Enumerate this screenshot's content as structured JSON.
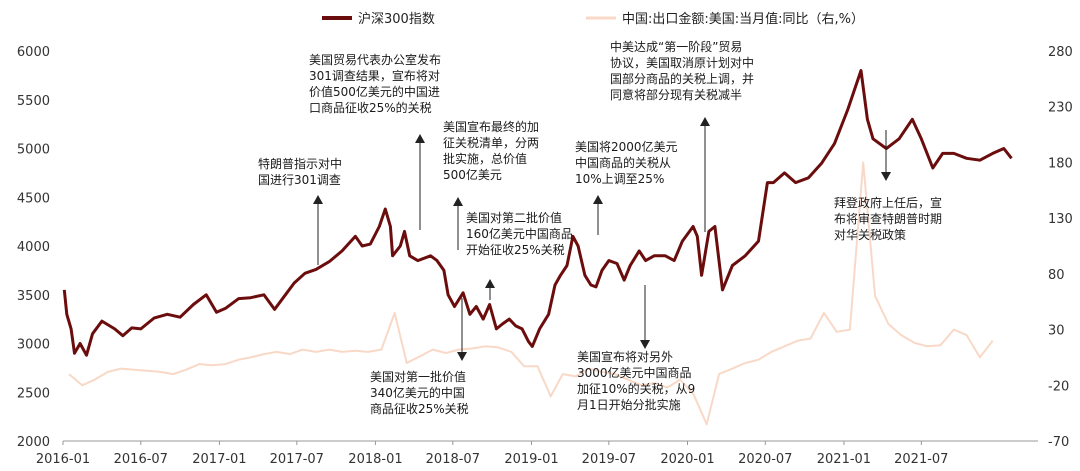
{
  "chart_data": {
    "type": "line",
    "dual_axis": true,
    "x_tick_labels": [
      "2016-01",
      "2016-07",
      "2017-01",
      "2017-07",
      "2018-01",
      "2018-07",
      "2019-01",
      "2019-07",
      "2020-01",
      "2020-07",
      "2021-01",
      "2021-07"
    ],
    "xlim": [
      "2016-01-01",
      "2022-03-31"
    ],
    "ylim_left": [
      2000,
      6000
    ],
    "y_left_ticks": [
      2000,
      2500,
      3000,
      3500,
      4000,
      4500,
      5000,
      5500,
      6000
    ],
    "ylim_right": [
      -70,
      280
    ],
    "y_right_ticks": [
      -70,
      -20,
      30,
      80,
      130,
      180,
      230,
      280
    ],
    "legend_position": "top",
    "series": [
      {
        "name": "沪深300指数",
        "axis": "left",
        "color": "#6b0d0d",
        "line_width": 3,
        "points": [
          [
            "2016-01-04",
            3550
          ],
          [
            "2016-01-10",
            3300
          ],
          [
            "2016-01-20",
            3150
          ],
          [
            "2016-01-28",
            2900
          ],
          [
            "2016-02-10",
            3000
          ],
          [
            "2016-02-25",
            2880
          ],
          [
            "2016-03-10",
            3100
          ],
          [
            "2016-04-01",
            3230
          ],
          [
            "2016-05-01",
            3150
          ],
          [
            "2016-05-20",
            3080
          ],
          [
            "2016-06-10",
            3160
          ],
          [
            "2016-07-01",
            3150
          ],
          [
            "2016-08-01",
            3260
          ],
          [
            "2016-09-01",
            3300
          ],
          [
            "2016-10-01",
            3270
          ],
          [
            "2016-11-01",
            3400
          ],
          [
            "2016-12-01",
            3500
          ],
          [
            "2016-12-25",
            3320
          ],
          [
            "2017-01-15",
            3360
          ],
          [
            "2017-02-15",
            3460
          ],
          [
            "2017-03-15",
            3470
          ],
          [
            "2017-04-15",
            3500
          ],
          [
            "2017-05-10",
            3350
          ],
          [
            "2017-06-01",
            3480
          ],
          [
            "2017-06-25",
            3620
          ],
          [
            "2017-07-20",
            3720
          ],
          [
            "2017-08-15",
            3760
          ],
          [
            "2017-09-15",
            3840
          ],
          [
            "2017-10-15",
            3950
          ],
          [
            "2017-11-15",
            4100
          ],
          [
            "2017-12-01",
            4000
          ],
          [
            "2017-12-20",
            4020
          ],
          [
            "2018-01-10",
            4200
          ],
          [
            "2018-01-24",
            4380
          ],
          [
            "2018-02-05",
            4200
          ],
          [
            "2018-02-10",
            3900
          ],
          [
            "2018-02-28",
            4000
          ],
          [
            "2018-03-10",
            4150
          ],
          [
            "2018-03-22",
            3900
          ],
          [
            "2018-04-10",
            3850
          ],
          [
            "2018-05-10",
            3900
          ],
          [
            "2018-05-25",
            3850
          ],
          [
            "2018-06-10",
            3750
          ],
          [
            "2018-06-20",
            3500
          ],
          [
            "2018-07-05",
            3380
          ],
          [
            "2018-07-25",
            3520
          ],
          [
            "2018-08-10",
            3300
          ],
          [
            "2018-08-25",
            3380
          ],
          [
            "2018-09-10",
            3250
          ],
          [
            "2018-09-25",
            3400
          ],
          [
            "2018-10-11",
            3150
          ],
          [
            "2018-10-25",
            3200
          ],
          [
            "2018-11-10",
            3250
          ],
          [
            "2018-11-25",
            3180
          ],
          [
            "2018-12-10",
            3150
          ],
          [
            "2018-12-25",
            3020
          ],
          [
            "2019-01-03",
            2970
          ],
          [
            "2019-01-20",
            3150
          ],
          [
            "2019-02-10",
            3300
          ],
          [
            "2019-02-25",
            3600
          ],
          [
            "2019-03-10",
            3700
          ],
          [
            "2019-03-25",
            3800
          ],
          [
            "2019-04-08",
            4100
          ],
          [
            "2019-04-20",
            4000
          ],
          [
            "2019-05-06",
            3700
          ],
          [
            "2019-05-20",
            3600
          ],
          [
            "2019-06-01",
            3580
          ],
          [
            "2019-06-15",
            3750
          ],
          [
            "2019-07-01",
            3850
          ],
          [
            "2019-07-20",
            3820
          ],
          [
            "2019-08-06",
            3650
          ],
          [
            "2019-08-20",
            3800
          ],
          [
            "2019-09-10",
            3950
          ],
          [
            "2019-09-25",
            3850
          ],
          [
            "2019-10-15",
            3900
          ],
          [
            "2019-11-10",
            3900
          ],
          [
            "2019-12-01",
            3850
          ],
          [
            "2019-12-20",
            4050
          ],
          [
            "2020-01-14",
            4200
          ],
          [
            "2020-01-24",
            4100
          ],
          [
            "2020-02-03",
            3700
          ],
          [
            "2020-02-20",
            4150
          ],
          [
            "2020-03-05",
            4200
          ],
          [
            "2020-03-23",
            3550
          ],
          [
            "2020-04-15",
            3800
          ],
          [
            "2020-05-15",
            3900
          ],
          [
            "2020-06-15",
            4050
          ],
          [
            "2020-07-06",
            4650
          ],
          [
            "2020-07-20",
            4650
          ],
          [
            "2020-08-15",
            4750
          ],
          [
            "2020-09-10",
            4650
          ],
          [
            "2020-10-10",
            4700
          ],
          [
            "2020-11-10",
            4850
          ],
          [
            "2020-12-10",
            5050
          ],
          [
            "2021-01-10",
            5400
          ],
          [
            "2021-02-10",
            5800
          ],
          [
            "2021-02-25",
            5300
          ],
          [
            "2021-03-10",
            5100
          ],
          [
            "2021-04-10",
            5000
          ],
          [
            "2021-05-10",
            5100
          ],
          [
            "2021-06-10",
            5300
          ],
          [
            "2021-07-01",
            5100
          ],
          [
            "2021-07-28",
            4800
          ],
          [
            "2021-08-20",
            4950
          ],
          [
            "2021-09-15",
            4950
          ],
          [
            "2021-10-15",
            4900
          ],
          [
            "2021-11-15",
            4880
          ],
          [
            "2021-12-15",
            4950
          ],
          [
            "2022-01-10",
            5000
          ],
          [
            "2022-01-28",
            4900
          ]
        ]
      },
      {
        "name": "中国:出口金额:美国:当月值:同比（右,%）",
        "axis": "right",
        "color": "#f8d9c8",
        "line_width": 2,
        "points": [
          [
            "2016-01",
            -10
          ],
          [
            "2016-02",
            -20
          ],
          [
            "2016-03",
            -15
          ],
          [
            "2016-04",
            -8
          ],
          [
            "2016-05",
            -5
          ],
          [
            "2016-06",
            -6
          ],
          [
            "2016-07",
            -7
          ],
          [
            "2016-08",
            -8
          ],
          [
            "2016-09",
            -10
          ],
          [
            "2016-10",
            -6
          ],
          [
            "2016-11",
            -1
          ],
          [
            "2016-12",
            -2
          ],
          [
            "2017-01",
            -1
          ],
          [
            "2017-02",
            3
          ],
          [
            "2017-03",
            5
          ],
          [
            "2017-04",
            8
          ],
          [
            "2017-05",
            10
          ],
          [
            "2017-06",
            8
          ],
          [
            "2017-07",
            12
          ],
          [
            "2017-08",
            10
          ],
          [
            "2017-09",
            12
          ],
          [
            "2017-10",
            10
          ],
          [
            "2017-11",
            11
          ],
          [
            "2017-12",
            10
          ],
          [
            "2018-01",
            12
          ],
          [
            "2018-02",
            45
          ],
          [
            "2018-03",
            0
          ],
          [
            "2018-04",
            6
          ],
          [
            "2018-05",
            12
          ],
          [
            "2018-06",
            9
          ],
          [
            "2018-07",
            12
          ],
          [
            "2018-08",
            13
          ],
          [
            "2018-09",
            15
          ],
          [
            "2018-10",
            14
          ],
          [
            "2018-11",
            10
          ],
          [
            "2018-12",
            -3
          ],
          [
            "2019-01",
            -3
          ],
          [
            "2019-02",
            -30
          ],
          [
            "2019-03",
            -10
          ],
          [
            "2019-04",
            -12
          ],
          [
            "2019-05",
            -5
          ],
          [
            "2019-06",
            -8
          ],
          [
            "2019-07",
            -10
          ],
          [
            "2019-08",
            -15
          ],
          [
            "2019-09",
            -20
          ],
          [
            "2019-10",
            -18
          ],
          [
            "2019-11",
            -22
          ],
          [
            "2019-12",
            -15
          ],
          [
            "2020-01",
            -28
          ],
          [
            "2020-02",
            -55
          ],
          [
            "2020-03",
            -10
          ],
          [
            "2020-04",
            -5
          ],
          [
            "2020-05",
            0
          ],
          [
            "2020-06",
            3
          ],
          [
            "2020-07",
            10
          ],
          [
            "2020-08",
            15
          ],
          [
            "2020-09",
            20
          ],
          [
            "2020-10",
            22
          ],
          [
            "2020-11",
            45
          ],
          [
            "2020-12",
            28
          ],
          [
            "2021-01",
            30
          ],
          [
            "2021-02",
            180
          ],
          [
            "2021-03",
            60
          ],
          [
            "2021-04",
            35
          ],
          [
            "2021-05",
            25
          ],
          [
            "2021-06",
            18
          ],
          [
            "2021-07",
            15
          ],
          [
            "2021-08",
            16
          ],
          [
            "2021-09",
            30
          ],
          [
            "2021-10",
            25
          ],
          [
            "2021-11",
            5
          ],
          [
            "2021-12",
            20
          ]
        ]
      }
    ],
    "annotations": [
      {
        "id": "ann-1",
        "lines": [
          "特朗普指示对中",
          "国进行301调查"
        ],
        "direction": "up"
      },
      {
        "id": "ann-2",
        "lines": [
          "美国贸易代表办公室发布",
          "301调查结果，宣布将对",
          "价值500亿美元的中国进",
          "口商品征收25%的关税"
        ],
        "direction": "up"
      },
      {
        "id": "ann-3",
        "lines": [
          "美国宣布最终的加",
          "征关税清单，分两",
          "批实施，总价值",
          "500亿美元"
        ],
        "direction": "up"
      },
      {
        "id": "ann-4",
        "lines": [
          "美国对第一批价值",
          "340亿美元的中国",
          "商品征收25%关税"
        ],
        "direction": "down"
      },
      {
        "id": "ann-5",
        "lines": [
          "美国对第二批价值",
          "160亿美元中国商品",
          "开始征收25%关税"
        ],
        "direction": "up"
      },
      {
        "id": "ann-6",
        "lines": [
          "美国将2000亿美元",
          "中国商品的关税从",
          "10%上调至25%"
        ],
        "direction": "up"
      },
      {
        "id": "ann-7",
        "lines": [
          "美国宣布将对另外",
          "3000亿美元中国商品",
          "加征10%的关税，从9",
          "月1日开始分批实施"
        ],
        "direction": "down"
      },
      {
        "id": "ann-8",
        "lines": [
          "中美达成“第一阶段”贸易",
          "协议，美国取消原计划对中",
          "国部分商品的关税上调，并",
          "同意将部分现有关税减半"
        ],
        "direction": "up"
      },
      {
        "id": "ann-9",
        "lines": [
          "拜登政府上任后，宣",
          "布将审查特朗普时期",
          "对华关税政策"
        ],
        "direction": "down"
      }
    ]
  }
}
